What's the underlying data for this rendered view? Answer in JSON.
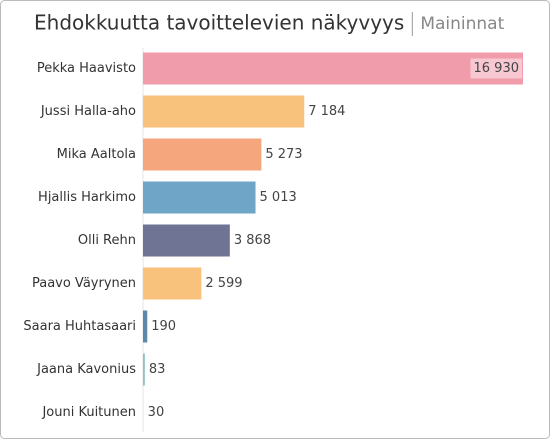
{
  "chart_data": {
    "type": "bar",
    "orientation": "horizontal",
    "title": "Ehdokkuutta tavoittelevien näkyvyys",
    "subtitle": "Maininnat",
    "categories": [
      "Pekka Haavisto",
      "Jussi Halla-aho",
      "Mika Aaltola",
      "Hjallis Harkimo",
      "Olli Rehn",
      "Paavo Väyrynen",
      "Saara Huhtasaari",
      "Jaana Kavonius",
      "Jouni Kuitunen"
    ],
    "values": [
      16930,
      7184,
      5273,
      5013,
      3868,
      2599,
      190,
      83,
      30
    ],
    "value_labels": [
      "16 930",
      "7 184",
      "5 273",
      "5 013",
      "3 868",
      "2 599",
      "190",
      "83",
      "30"
    ],
    "colors": [
      "#f09cab",
      "#f9c27c",
      "#f6a67d",
      "#6fa6c8",
      "#6f7394",
      "#f9c27c",
      "#5d88a8",
      "#92c3bf",
      "#e8e8e8"
    ]
  }
}
